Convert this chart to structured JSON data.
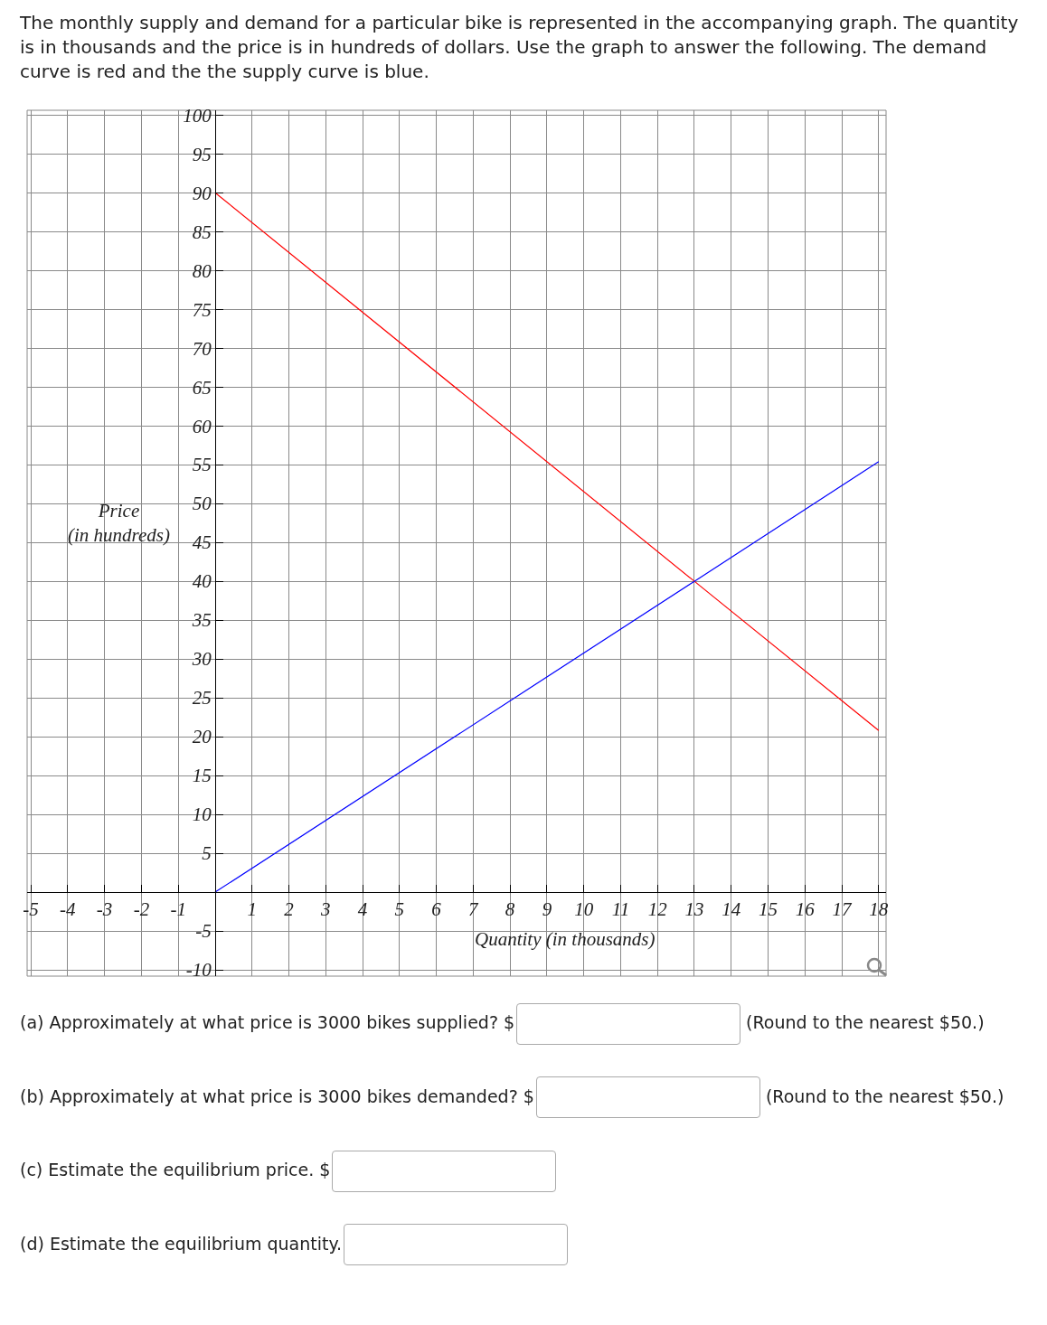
{
  "chart_data": {
    "type": "line",
    "title": "The monthly supply and demand for a particular bike is represented in the accompanying graph. The quantity is in thousands and the price is in hundreds of dollars. Use the graph to answer the following. The demand curve is red and the the supply curve is blue.",
    "xlabel": "Quantity (in thousands)",
    "ylabel": "Price\n(in hundreds)",
    "x": [
      0,
      13,
      18
    ],
    "series": [
      {
        "color": "#ff0000",
        "values": [
          90,
          40,
          20.8
        ]
      },
      {
        "color": "#0000ff",
        "values": [
          0,
          40,
          55.4
        ]
      }
    ],
    "xlim": [
      -5.1,
      18.2
    ],
    "ylim": [
      -10.8,
      100.6
    ],
    "xticks": [
      -5,
      -4,
      -3,
      -2,
      -1,
      1,
      2,
      3,
      4,
      5,
      6,
      7,
      8,
      9,
      10,
      11,
      12,
      13,
      14,
      15,
      16,
      17,
      18
    ],
    "yticks": [
      -10,
      -5,
      5,
      10,
      15,
      20,
      25,
      30,
      35,
      40,
      45,
      50,
      55,
      60,
      65,
      70,
      75,
      80,
      85,
      90,
      95,
      100
    ],
    "grid": true,
    "marker": "none",
    "line_style": "solid",
    "annotations": [
      "(a) Approximately at what price is 3000 bikes supplied? $",
      "(Round to the nearest $50.)",
      "(b) Approximately at what price is 3000 bikes demanded? $",
      "(Round to the nearest $50.)",
      "(c) Estimate the equilibrium price. $",
      "(d) Estimate the equilibrium quantity."
    ]
  }
}
